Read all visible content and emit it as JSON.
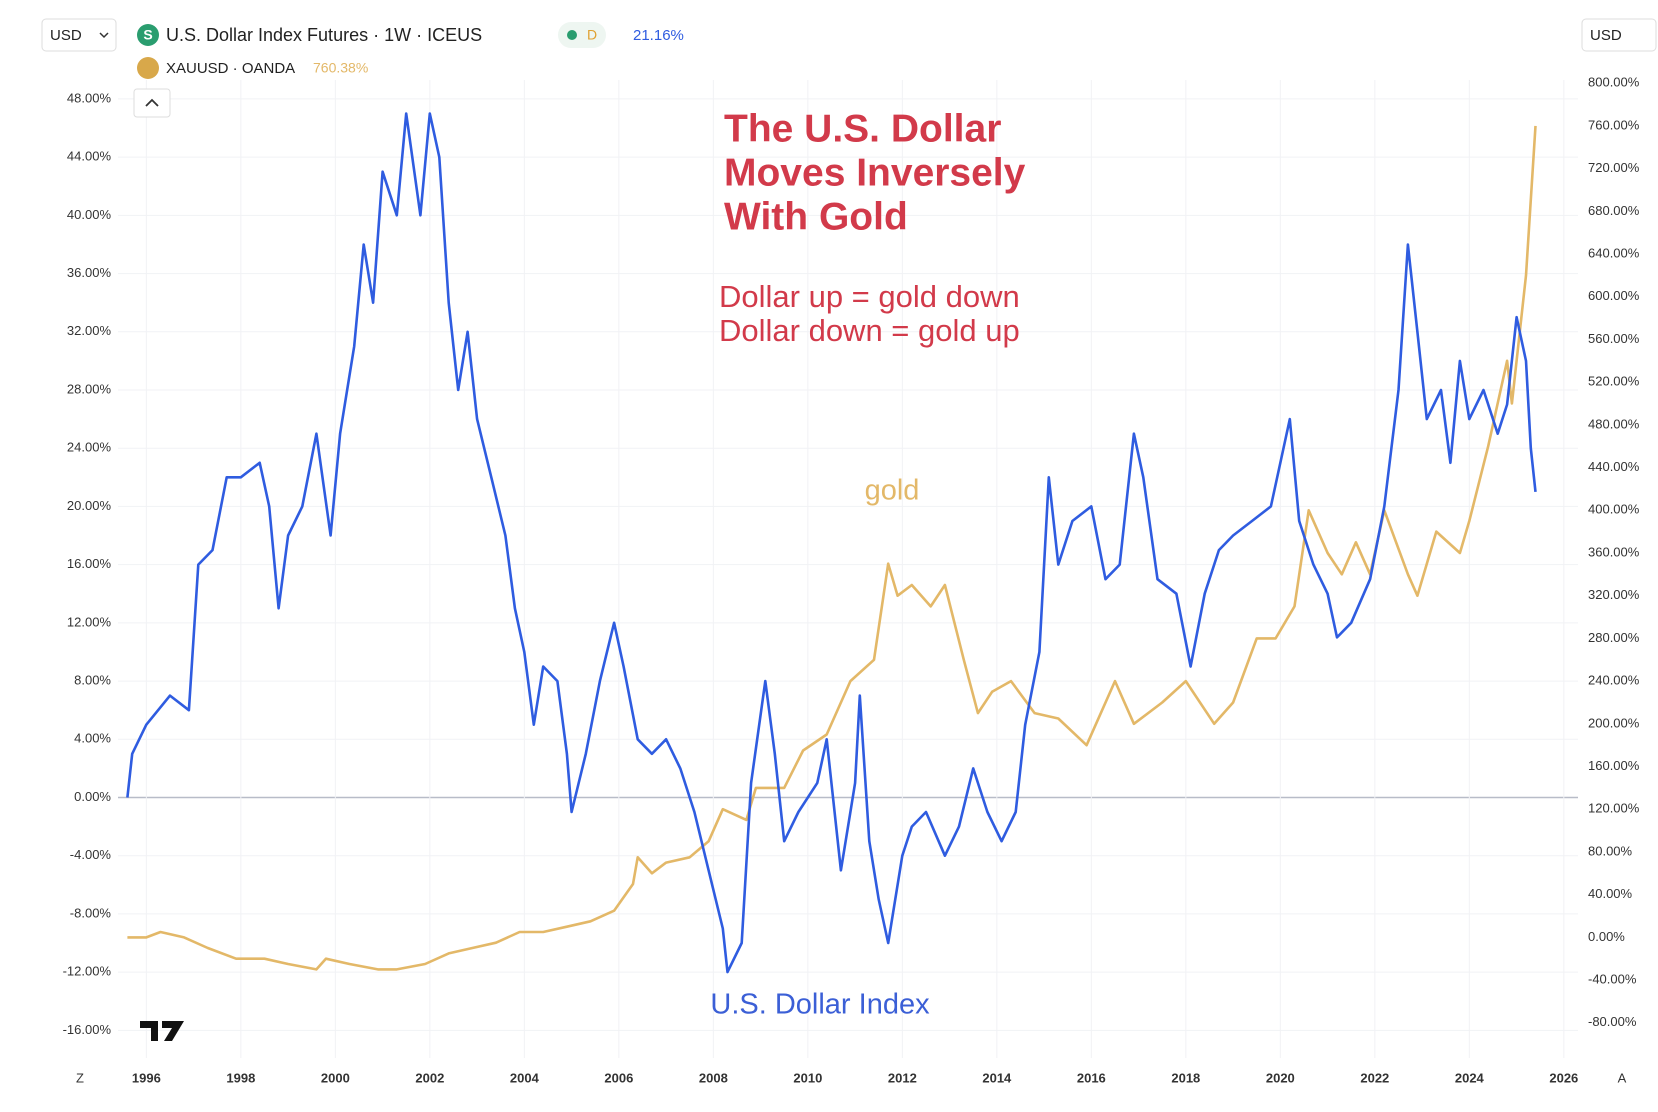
{
  "chart_data": {
    "type": "line",
    "title": [
      "The U.S. Dollar",
      "Moves Inversely",
      "With Gold"
    ],
    "subtitle": [
      "Dollar up = gold down",
      "Dollar down = gold up"
    ],
    "annotations": [
      "gold",
      "U.S. Dollar Index"
    ],
    "header": {
      "currency_left": "USD",
      "currency_right": "USD",
      "interval": "D",
      "scale_buttons": [
        "Z",
        "A"
      ]
    },
    "grid": true,
    "xlim": [
      1995.4,
      2026.3
    ],
    "xticks": [
      1996,
      1998,
      2000,
      2002,
      2004,
      2006,
      2008,
      2010,
      2012,
      2014,
      2016,
      2018,
      2020,
      2022,
      2024,
      2026
    ],
    "ylim": [
      -17.9,
      49.3
    ],
    "yticks": [
      {
        "value": -16,
        "label": "-16.00%"
      },
      {
        "value": -12,
        "label": "-12.00%"
      },
      {
        "value": -8,
        "label": "-8.00%"
      },
      {
        "value": -4,
        "label": "-4.00%"
      },
      {
        "value": 0,
        "label": "0.00%"
      },
      {
        "value": 4,
        "label": "4.00%"
      },
      {
        "value": 8,
        "label": "8.00%"
      },
      {
        "value": 12,
        "label": "12.00%"
      },
      {
        "value": 16,
        "label": "16.00%"
      },
      {
        "value": 20,
        "label": "20.00%"
      },
      {
        "value": 24,
        "label": "24.00%"
      },
      {
        "value": 28,
        "label": "28.00%"
      },
      {
        "value": 32,
        "label": "32.00%"
      },
      {
        "value": 36,
        "label": "36.00%"
      },
      {
        "value": 40,
        "label": "40.00%"
      },
      {
        "value": 44,
        "label": "44.00%"
      },
      {
        "value": 48,
        "label": "48.00%"
      }
    ],
    "y2lim": [
      -113,
      803
    ],
    "y2ticks": [
      {
        "value": -80,
        "label": "-80.00%"
      },
      {
        "value": -40,
        "label": "-40.00%"
      },
      {
        "value": 0,
        "label": "0.00%"
      },
      {
        "value": 40,
        "label": "40.00%"
      },
      {
        "value": 80,
        "label": "80.00%"
      },
      {
        "value": 120,
        "label": "120.00%"
      },
      {
        "value": 160,
        "label": "160.00%"
      },
      {
        "value": 200,
        "label": "200.00%"
      },
      {
        "value": 240,
        "label": "240.00%"
      },
      {
        "value": 280,
        "label": "280.00%"
      },
      {
        "value": 320,
        "label": "320.00%"
      },
      {
        "value": 360,
        "label": "360.00%"
      },
      {
        "value": 400,
        "label": "400.00%"
      },
      {
        "value": 440,
        "label": "440.00%"
      },
      {
        "value": 480,
        "label": "480.00%"
      },
      {
        "value": 520,
        "label": "520.00%"
      },
      {
        "value": 560,
        "label": "560.00%"
      },
      {
        "value": 600,
        "label": "600.00%"
      },
      {
        "value": 640,
        "label": "640.00%"
      },
      {
        "value": 680,
        "label": "680.00%"
      },
      {
        "value": 720,
        "label": "720.00%"
      },
      {
        "value": 760,
        "label": "760.00%"
      },
      {
        "value": 800,
        "label": "800.00%"
      }
    ],
    "series": [
      {
        "name": "U.S. Dollar Index Futures · 1W · ICEUS",
        "color": "#2f5ce0",
        "axis": "y",
        "last": {
          "value": 21.16,
          "label": "21.16%"
        },
        "x": [
          1995.6,
          1995.7,
          1996.0,
          1996.5,
          1996.9,
          1997.1,
          1997.4,
          1997.7,
          1998.0,
          1998.4,
          1998.6,
          1998.8,
          1999.0,
          1999.3,
          1999.6,
          1999.9,
          2000.1,
          2000.4,
          2000.6,
          2000.8,
          2001.0,
          2001.3,
          2001.5,
          2001.8,
          2002.0,
          2002.2,
          2002.4,
          2002.6,
          2002.8,
          2003.0,
          2003.3,
          2003.6,
          2003.8,
          2004.0,
          2004.2,
          2004.4,
          2004.7,
          2004.9,
          2005.0,
          2005.3,
          2005.6,
          2005.9,
          2006.1,
          2006.4,
          2006.7,
          2007.0,
          2007.3,
          2007.6,
          2007.9,
          2008.2,
          2008.3,
          2008.6,
          2008.8,
          2009.1,
          2009.3,
          2009.5,
          2009.8,
          2010.2,
          2010.4,
          2010.7,
          2010.9,
          2011.0,
          2011.1,
          2011.3,
          2011.5,
          2011.7,
          2011.9,
          2012.0,
          2012.2,
          2012.5,
          2012.9,
          2013.2,
          2013.5,
          2013.8,
          2014.1,
          2014.4,
          2014.6,
          2014.9,
          2015.1,
          2015.3,
          2015.6,
          2016.0,
          2016.3,
          2016.6,
          2016.9,
          2017.1,
          2017.4,
          2017.8,
          2018.1,
          2018.4,
          2018.7,
          2019.0,
          2019.4,
          2019.8,
          2020.2,
          2020.4,
          2020.7,
          2021.0,
          2021.2,
          2021.5,
          2021.9,
          2022.2,
          2022.5,
          2022.7,
          2022.9,
          2023.1,
          2023.4,
          2023.6,
          2023.8,
          2024.0,
          2024.3,
          2024.6,
          2024.8,
          2025.0,
          2025.2,
          2025.3,
          2025.4
        ],
        "values": [
          0,
          3,
          5,
          7,
          6,
          16,
          17,
          22,
          22,
          23,
          20,
          13,
          18,
          20,
          25,
          18,
          25,
          31,
          38,
          34,
          43,
          40,
          47,
          40,
          47,
          44,
          34,
          28,
          32,
          26,
          22,
          18,
          13,
          10,
          5,
          9,
          8,
          3,
          -1,
          3,
          8,
          12,
          9,
          4,
          3,
          4,
          2,
          -1,
          -5,
          -9,
          -12,
          -10,
          1,
          8,
          3,
          -3,
          -1,
          1,
          4,
          -5,
          -1,
          1,
          7,
          -3,
          -7,
          -10,
          -6,
          -4,
          -2,
          -1,
          -4,
          -2,
          2,
          -1,
          -3,
          -1,
          5,
          10,
          22,
          16,
          19,
          20,
          15,
          16,
          25,
          22,
          15,
          14,
          9,
          14,
          17,
          18,
          19,
          20,
          26,
          19,
          16,
          14,
          11,
          12,
          15,
          20,
          28,
          38,
          32,
          26,
          28,
          23,
          30,
          26,
          28,
          25,
          27,
          33,
          30,
          24,
          21
        ]
      },
      {
        "name": "XAUUSD · OANDA",
        "color": "#e3b868",
        "axis": "y2",
        "last": {
          "value": 760.38,
          "label": "760.38%"
        },
        "x": [
          1995.6,
          1996.0,
          1996.3,
          1996.8,
          1997.3,
          1997.9,
          1998.5,
          1999.0,
          1999.6,
          1999.8,
          2000.3,
          2000.9,
          2001.3,
          2001.9,
          2002.4,
          2002.9,
          2003.4,
          2003.9,
          2004.4,
          2004.9,
          2005.4,
          2005.9,
          2006.3,
          2006.4,
          2006.7,
          2007.0,
          2007.5,
          2007.9,
          2008.2,
          2008.7,
          2008.9,
          2009.5,
          2009.9,
          2010.4,
          2010.9,
          2011.4,
          2011.7,
          2011.9,
          2012.2,
          2012.6,
          2012.9,
          2013.3,
          2013.6,
          2013.9,
          2014.3,
          2014.8,
          2015.3,
          2015.9,
          2016.5,
          2016.9,
          2017.5,
          2018.0,
          2018.6,
          2019.0,
          2019.5,
          2019.9,
          2020.3,
          2020.6,
          2021.0,
          2021.3,
          2021.6,
          2021.9,
          2022.2,
          2022.7,
          2022.9,
          2023.3,
          2023.8,
          2024.0,
          2024.4,
          2024.8,
          2024.9,
          2025.2,
          2025.4
        ],
        "values": [
          0,
          0,
          5,
          0,
          -10,
          -20,
          -20,
          -25,
          -30,
          -20,
          -25,
          -30,
          -30,
          -25,
          -15,
          -10,
          -5,
          5,
          5,
          10,
          15,
          25,
          50,
          75,
          60,
          70,
          75,
          90,
          120,
          110,
          140,
          140,
          175,
          190,
          240,
          260,
          350,
          320,
          330,
          310,
          330,
          260,
          210,
          230,
          240,
          210,
          205,
          180,
          240,
          200,
          220,
          240,
          200,
          220,
          280,
          280,
          310,
          400,
          360,
          340,
          370,
          340,
          400,
          340,
          320,
          380,
          360,
          390,
          460,
          540,
          500,
          620,
          760
        ]
      }
    ]
  }
}
